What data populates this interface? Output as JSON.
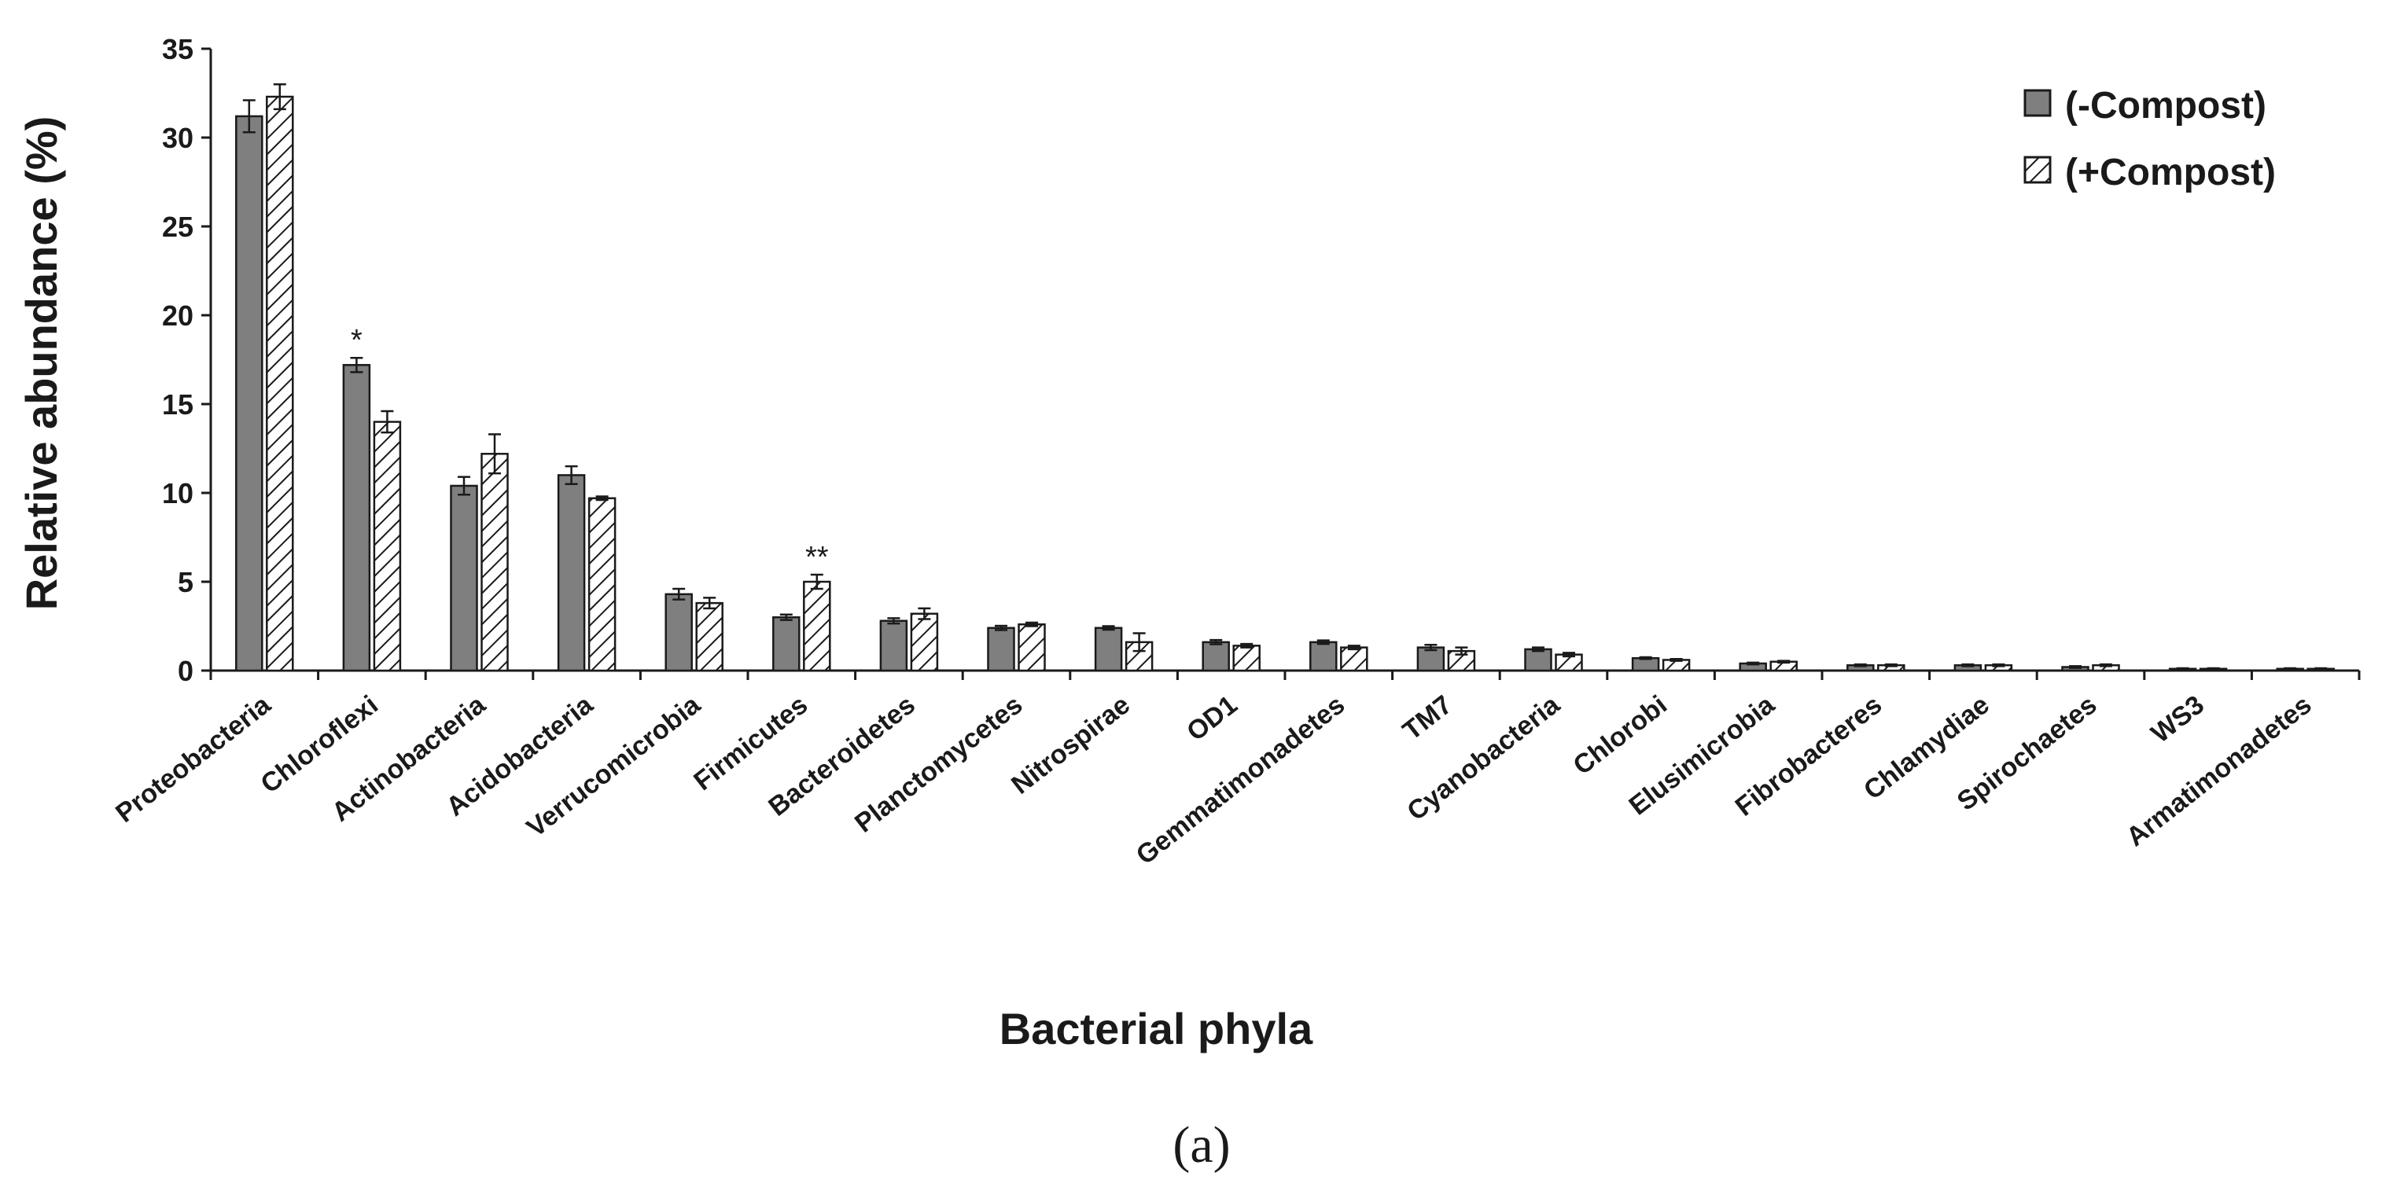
{
  "chart_data": {
    "type": "bar",
    "xlabel": "Bacterial phyla",
    "ylabel": "Relative abundance (%)",
    "ylim": [
      0,
      35
    ],
    "yticks": [
      0,
      5,
      10,
      15,
      20,
      25,
      30,
      35
    ],
    "grid": false,
    "legend_position": "top-right",
    "panel_label": "(a)",
    "categories": [
      "Proteobacteria",
      "Chloroflexi",
      "Actinobacteria",
      "Acidobacteria",
      "Verrucomicrobia",
      "Firmicutes",
      "Bacteroidetes",
      "Planctomycetes",
      "Nitrospirae",
      "OD1",
      "Gemmatimonadetes",
      "TM7",
      "Cyanobacteria",
      "Chlorobi",
      "Elusimicrobia",
      "Fibrobacteres",
      "Chlamydiae",
      "Spirochaetes",
      "WS3",
      "Armatimonadetes"
    ],
    "series": [
      {
        "name": "(-Compost)",
        "pattern": "solid",
        "color": "#7f7f7f",
        "values": [
          31.2,
          17.2,
          10.4,
          11.0,
          4.3,
          3.0,
          2.8,
          2.4,
          2.4,
          1.6,
          1.6,
          1.3,
          1.2,
          0.7,
          0.4,
          0.3,
          0.3,
          0.2,
          0.1,
          0.1
        ],
        "errors": [
          0.9,
          0.4,
          0.5,
          0.5,
          0.3,
          0.15,
          0.15,
          0.12,
          0.1,
          0.12,
          0.1,
          0.15,
          0.1,
          0.05,
          0.05,
          0.05,
          0.05,
          0.05,
          0.03,
          0.03
        ]
      },
      {
        "name": "(+Compost)",
        "pattern": "hatched",
        "color": "#ffffff",
        "values": [
          32.3,
          14.0,
          12.2,
          9.7,
          3.8,
          5.0,
          3.2,
          2.6,
          1.6,
          1.4,
          1.3,
          1.1,
          0.9,
          0.6,
          0.5,
          0.3,
          0.3,
          0.3,
          0.1,
          0.1
        ],
        "errors": [
          0.7,
          0.6,
          1.1,
          0.1,
          0.3,
          0.4,
          0.3,
          0.1,
          0.5,
          0.1,
          0.1,
          0.2,
          0.1,
          0.05,
          0.05,
          0.05,
          0.05,
          0.05,
          0.03,
          0.03
        ]
      }
    ],
    "annotations": [
      {
        "category": "Chloroflexi",
        "series": "(-Compost)",
        "text": "*"
      },
      {
        "category": "Firmicutes",
        "series": "(+Compost)",
        "text": "**"
      }
    ]
  }
}
